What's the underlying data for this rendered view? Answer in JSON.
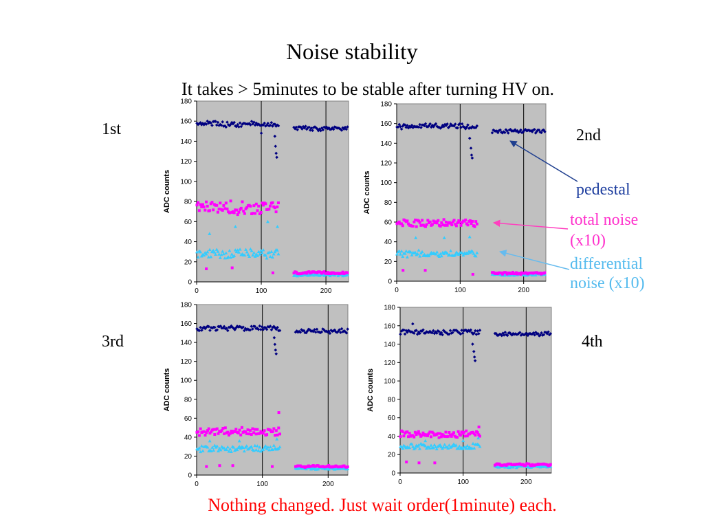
{
  "slide": {
    "title": "Noise stability",
    "subtitle": "It takes > 5minutes to be stable after turning HV on.",
    "footer": "Nothing changed. Just wait order(1minute) each.",
    "run_labels": [
      "1st",
      "2nd",
      "3rd",
      "4th"
    ],
    "annotations": {
      "pedestal": "pedestal",
      "total_noise": [
        "total noise",
        "(x10)"
      ],
      "differential_noise": [
        "differential",
        "noise (x10)"
      ]
    },
    "colors": {
      "pedestal": "#000080",
      "total_noise": "#ff00ff",
      "differential_noise": "#33ccff",
      "plot_bg": "#c0c0c0",
      "footer": "#ff0000"
    }
  },
  "chart_data": [
    {
      "type": "scatter",
      "run": "1st",
      "ylabel": "ADC counts",
      "xlim": [
        0,
        235
      ],
      "ylim": [
        0,
        180
      ],
      "xticks": [
        0,
        100,
        200
      ],
      "yticks": [
        0,
        20,
        40,
        60,
        80,
        100,
        120,
        140,
        160,
        180
      ],
      "grid": "vertical lines",
      "series": [
        {
          "key": "pedestal",
          "segments": [
            {
              "x": [
                0,
                128
              ],
              "mean": 157,
              "spread": 2.5
            },
            {
              "x": [
                150,
                235
              ],
              "mean": 153,
              "spread": 2
            }
          ],
          "outliers": [
            [
              100,
              148
            ],
            [
              121,
              145
            ],
            [
              122,
              135
            ],
            [
              123,
              128
            ],
            [
              124,
              124
            ]
          ]
        },
        {
          "key": "total_noise",
          "segments": [
            {
              "x": [
                0,
                128
              ],
              "mean": 74,
              "spread": 6
            },
            {
              "x": [
                150,
                235
              ],
              "mean": 9,
              "spread": 1
            }
          ],
          "outliers": [
            [
              15,
              13
            ],
            [
              55,
              14
            ],
            [
              118,
              9
            ]
          ]
        },
        {
          "key": "differential_noise",
          "segments": [
            {
              "x": [
                0,
                128
              ],
              "mean": 28,
              "spread": 4
            },
            {
              "x": [
                150,
                235
              ],
              "mean": 7,
              "spread": 1
            }
          ],
          "outliers": [
            [
              20,
              48
            ],
            [
              60,
              55
            ],
            [
              110,
              60
            ],
            [
              125,
              55
            ]
          ]
        }
      ]
    },
    {
      "type": "scatter",
      "run": "2nd",
      "ylabel": "ADC counts",
      "xlim": [
        0,
        235
      ],
      "ylim": [
        0,
        180
      ],
      "xticks": [
        0,
        100,
        200
      ],
      "yticks": [
        0,
        20,
        40,
        60,
        80,
        100,
        120,
        140,
        160,
        180
      ],
      "grid": "vertical lines",
      "series": [
        {
          "key": "pedestal",
          "segments": [
            {
              "x": [
                0,
                128
              ],
              "mean": 157,
              "spread": 2.5
            },
            {
              "x": [
                150,
                235
              ],
              "mean": 152,
              "spread": 2
            }
          ],
          "outliers": [
            [
              115,
              145
            ],
            [
              117,
              135
            ],
            [
              118,
              128
            ],
            [
              119,
              125
            ]
          ]
        },
        {
          "key": "total_noise",
          "segments": [
            {
              "x": [
                0,
                128
              ],
              "mean": 59,
              "spread": 3
            },
            {
              "x": [
                150,
                235
              ],
              "mean": 8,
              "spread": 1
            }
          ],
          "outliers": [
            [
              10,
              11
            ],
            [
              45,
              11
            ],
            [
              120,
              7
            ]
          ]
        },
        {
          "key": "differential_noise",
          "segments": [
            {
              "x": [
                0,
                128
              ],
              "mean": 28,
              "spread": 3
            },
            {
              "x": [
                150,
                235
              ],
              "mean": 7,
              "spread": 1
            }
          ],
          "outliers": [
            [
              30,
              44
            ],
            [
              75,
              44
            ],
            [
              115,
              45
            ]
          ]
        }
      ]
    },
    {
      "type": "scatter",
      "run": "3rd",
      "ylabel": "ADC counts",
      "xlim": [
        0,
        230
      ],
      "ylim": [
        0,
        180
      ],
      "xticks": [
        0,
        100,
        200
      ],
      "yticks": [
        0,
        20,
        40,
        60,
        80,
        100,
        120,
        140,
        160,
        180
      ],
      "grid": "vertical lines",
      "series": [
        {
          "key": "pedestal",
          "segments": [
            {
              "x": [
                0,
                128
              ],
              "mean": 155,
              "spread": 2.5
            },
            {
              "x": [
                150,
                230
              ],
              "mean": 152,
              "spread": 2
            }
          ],
          "outliers": [
            [
              118,
              145
            ],
            [
              119,
              138
            ],
            [
              120,
              132
            ],
            [
              121,
              128
            ]
          ]
        },
        {
          "key": "total_noise",
          "segments": [
            {
              "x": [
                0,
                128
              ],
              "mean": 46,
              "spread": 4
            },
            {
              "x": [
                150,
                230
              ],
              "mean": 9,
              "spread": 1
            }
          ],
          "outliers": [
            [
              15,
              9
            ],
            [
              35,
              10
            ],
            [
              55,
              10
            ],
            [
              115,
              9
            ],
            [
              125,
              66
            ]
          ]
        },
        {
          "key": "differential_noise",
          "segments": [
            {
              "x": [
                0,
                128
              ],
              "mean": 28,
              "spread": 3
            },
            {
              "x": [
                150,
                230
              ],
              "mean": 7,
              "spread": 1
            }
          ],
          "outliers": [
            [
              20,
              36
            ],
            [
              65,
              36
            ],
            [
              122,
              38
            ]
          ]
        }
      ]
    },
    {
      "type": "scatter",
      "run": "4th",
      "ylabel": "ADC counts",
      "xlim": [
        0,
        240
      ],
      "ylim": [
        0,
        180
      ],
      "xticks": [
        0,
        100,
        200
      ],
      "yticks": [
        0,
        20,
        40,
        60,
        80,
        100,
        120,
        140,
        160,
        180
      ],
      "grid": "vertical lines",
      "series": [
        {
          "key": "pedestal",
          "segments": [
            {
              "x": [
                0,
                128
              ],
              "mean": 153,
              "spread": 2.5
            },
            {
              "x": [
                150,
                240
              ],
              "mean": 151,
              "spread": 2
            }
          ],
          "outliers": [
            [
              20,
              162
            ],
            [
              115,
              140
            ],
            [
              117,
              132
            ],
            [
              118,
              126
            ],
            [
              119,
              122
            ]
          ]
        },
        {
          "key": "total_noise",
          "segments": [
            {
              "x": [
                0,
                128
              ],
              "mean": 42,
              "spread": 3
            },
            {
              "x": [
                150,
                240
              ],
              "mean": 9,
              "spread": 1
            }
          ],
          "outliers": [
            [
              10,
              12
            ],
            [
              30,
              11
            ],
            [
              55,
              11
            ],
            [
              125,
              50
            ]
          ]
        },
        {
          "key": "differential_noise",
          "segments": [
            {
              "x": [
                0,
                128
              ],
              "mean": 29,
              "spread": 2.5
            },
            {
              "x": [
                150,
                240
              ],
              "mean": 7,
              "spread": 1
            }
          ],
          "outliers": [
            [
              40,
              35
            ],
            [
              100,
              35
            ],
            [
              124,
              38
            ]
          ]
        }
      ]
    }
  ]
}
